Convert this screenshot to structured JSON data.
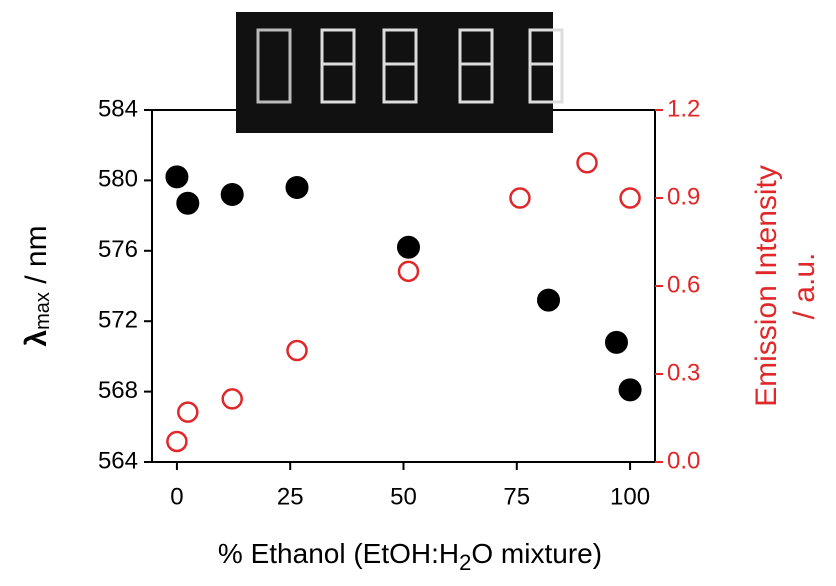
{
  "chart_data": {
    "type": "scatter",
    "xlabel_parts": [
      "% Ethanol  (EtOH:H",
      "2",
      "O mixture)"
    ],
    "ylabel_parts": [
      "λ",
      "max",
      " / nm"
    ],
    "y2label_lines": [
      "Emission Intensity",
      "/ a.u."
    ],
    "xlim": [
      -5.5,
      105.5
    ],
    "xticks": [
      0,
      25,
      50,
      75,
      100
    ],
    "ylim": [
      564,
      584
    ],
    "yticks": [
      564,
      568,
      572,
      576,
      580,
      584
    ],
    "y2lim": [
      0,
      1.2
    ],
    "y2ticks": [
      {
        "value": 0,
        "label": "0.0"
      },
      0.3,
      0.6,
      0.9,
      1.2
    ],
    "series": [
      {
        "color": "#000000",
        "marker": "filled",
        "x": [
          0,
          2.4,
          12.2,
          26.5,
          51.1,
          82,
          97,
          100
        ],
        "values": [
          580.2,
          578.7,
          579.2,
          579.6,
          576.2,
          573.2,
          570.8,
          568.1
        ]
      },
      {
        "color": "#e0282a",
        "marker": "open",
        "axis": "y2",
        "x": [
          0,
          2.4,
          12.2,
          26.5,
          51.1,
          75.7,
          90.5,
          100
        ],
        "values": [
          0.07,
          0.17,
          0.215,
          0.38,
          0.65,
          0.9,
          1.02,
          0.9
        ]
      }
    ],
    "y2color": "#e0282a"
  }
}
